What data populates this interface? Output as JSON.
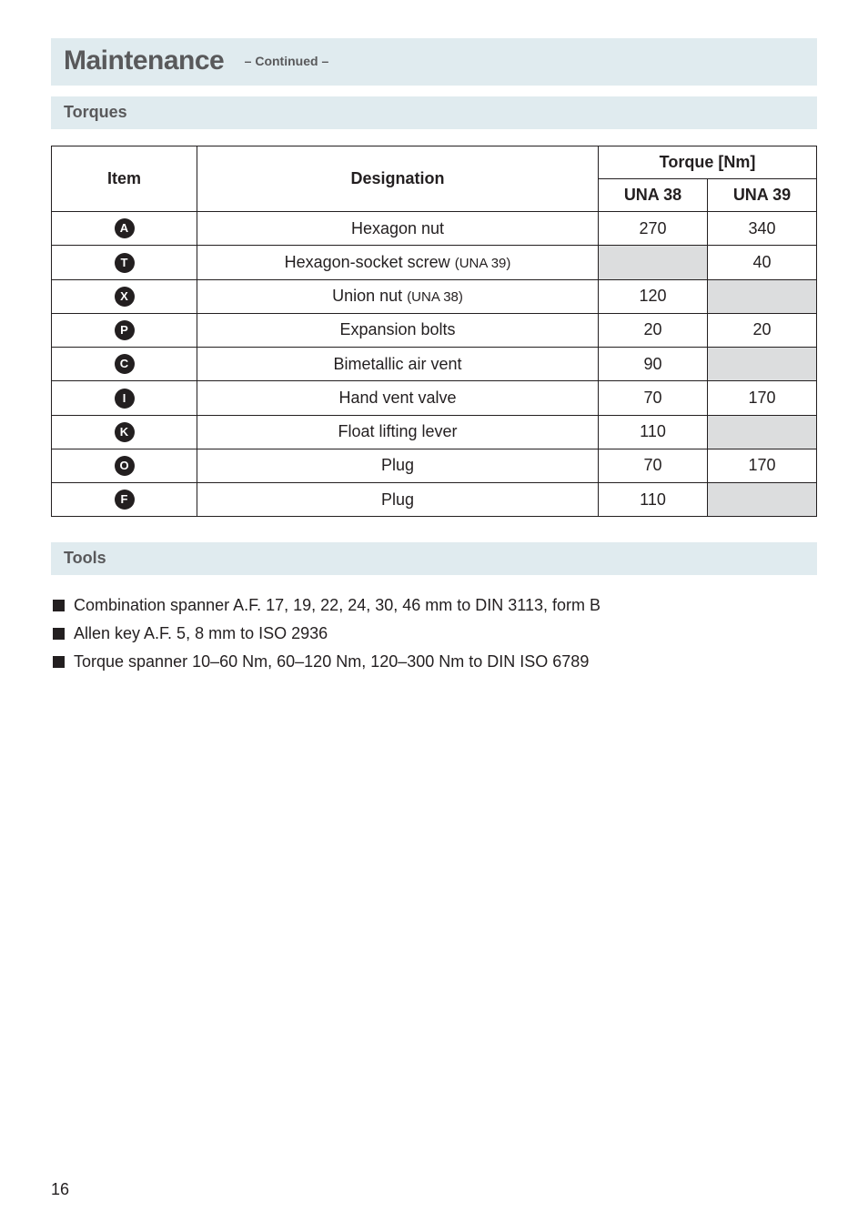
{
  "colors": {
    "bar_bg": "#e0ebef",
    "bar_text": "#59595b",
    "table_border": "#231f20",
    "shaded_cell": "#dcddde",
    "circle_bg": "#231f20",
    "circle_fg": "#ffffff",
    "body_text": "#231f20",
    "page_bg": "#ffffff",
    "square_bullet": "#231f20"
  },
  "typography": {
    "title_fontsize": 30,
    "subbar_fontsize": 18,
    "continued_fontsize": 14,
    "table_fontsize": 18,
    "small_paren_fontsize": 15,
    "list_fontsize": 18,
    "circle_letter_fontsize": 13
  },
  "heading": {
    "title": "Maintenance",
    "continued": "– Continued –"
  },
  "torques": {
    "section_label": "Torques",
    "headers": {
      "item": "Item",
      "designation": "Designation",
      "torque_group": "Torque [Nm]",
      "una38": "UNA 38",
      "una39": "UNA 39"
    },
    "rows": [
      {
        "letter": "A",
        "designation": "Hexagon nut",
        "una38": "270",
        "una39": "340",
        "una38_shaded": false,
        "una39_shaded": false
      },
      {
        "letter": "T",
        "designation": "Hexagon-socket screw",
        "designation_paren": "(UNA 39)",
        "una38": "",
        "una39": "40",
        "una38_shaded": true,
        "una39_shaded": false
      },
      {
        "letter": "X",
        "designation": "Union nut",
        "designation_paren": "(UNA 38)",
        "una38": "120",
        "una39": "",
        "una38_shaded": false,
        "una39_shaded": true
      },
      {
        "letter": "P",
        "designation": "Expansion bolts",
        "una38": "20",
        "una39": "20",
        "una38_shaded": false,
        "una39_shaded": false
      },
      {
        "letter": "C",
        "designation": "Bimetallic air vent",
        "una38": "90",
        "una39": "",
        "una38_shaded": false,
        "una39_shaded": true
      },
      {
        "letter": "I",
        "designation": "Hand vent valve",
        "una38": "70",
        "una39": "170",
        "una38_shaded": false,
        "una39_shaded": false
      },
      {
        "letter": "K",
        "designation": "Float lifting lever",
        "una38": "110",
        "una39": "",
        "una38_shaded": false,
        "una39_shaded": true
      },
      {
        "letter": "O",
        "designation": "Plug",
        "una38": "70",
        "una39": "170",
        "una38_shaded": false,
        "una39_shaded": false
      },
      {
        "letter": "F",
        "designation": "Plug",
        "una38": "110",
        "una39": "",
        "una38_shaded": false,
        "una39_shaded": true
      }
    ]
  },
  "tools": {
    "section_label": "Tools",
    "items": [
      "Combination spanner A.F. 17, 19, 22, 24, 30, 46 mm to DIN 3113, form B",
      "Allen key A.F. 5, 8 mm to ISO 2936",
      "Torque spanner 10–60 Nm, 60–120 Nm, 120–300 Nm to DIN ISO 6789"
    ]
  },
  "page_number": "16"
}
